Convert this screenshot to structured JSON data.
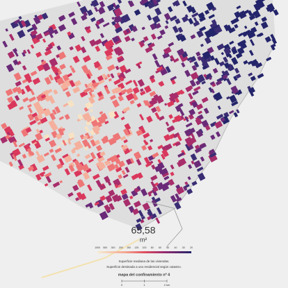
{
  "map": {
    "value": "65,58",
    "unit": "m²",
    "legend_labels": [
      "1000",
      "500",
      "300",
      "200",
      "150",
      "125",
      "100",
      "80",
      "60",
      "50",
      "40",
      "30",
      "20"
    ],
    "captions": [
      "Superficie mediana de las viviendas.",
      "Superficie destinada a uso residencial según catastro."
    ],
    "title": "mapa del confinamiento nº 4",
    "scale_labels": [
      "0",
      "1",
      "2 km"
    ]
  }
}
